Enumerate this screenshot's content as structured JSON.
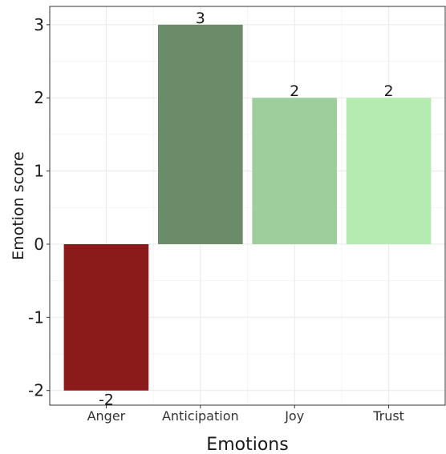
{
  "chart_data": {
    "type": "bar",
    "categories": [
      "Anger",
      "Anticipation",
      "Joy",
      "Trust"
    ],
    "values": [
      -2,
      3,
      2,
      2
    ],
    "data_labels": [
      "-2",
      "3",
      "2",
      "2"
    ],
    "colors": [
      "#8b1a1a",
      "#6b8c69",
      "#9fce9d",
      "#b3ebb1"
    ],
    "xlabel": "Emotions",
    "ylabel": "Emotion score",
    "ylim": [
      -2.2,
      3.25
    ],
    "yticks": [
      -2,
      -1,
      0,
      1,
      2,
      3
    ],
    "ytick_labels": [
      "-2",
      "-1",
      "0",
      "1",
      "2",
      "3"
    ],
    "grid": true,
    "legend": "none"
  }
}
